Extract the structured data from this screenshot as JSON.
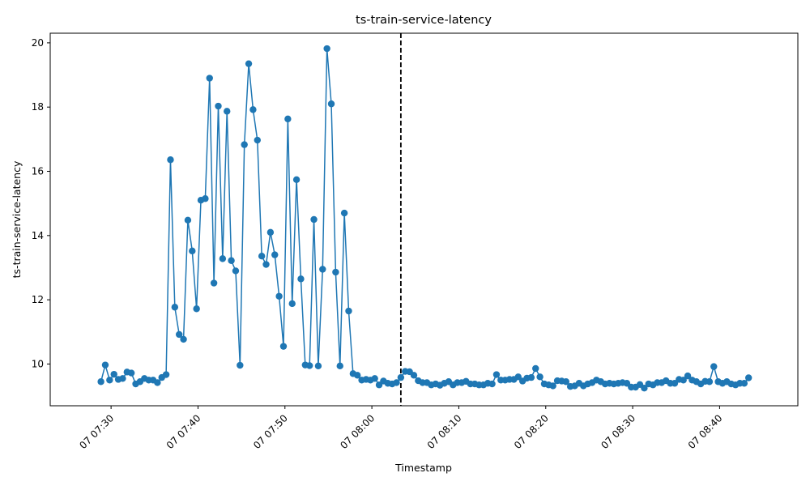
{
  "chart_data": {
    "type": "line",
    "title": "ts-train-service-latency",
    "xlabel": "Timestamp",
    "ylabel": "ts-train-service-latency",
    "xlim": [
      "07 07:23:00",
      "08:49:00"
    ],
    "ylim": [
      8.7,
      20.3
    ],
    "grid": false,
    "legend": "none",
    "x_sampling_minutes": 0.5,
    "x_ticks": [
      "07 07:30",
      "07 07:40",
      "07 07:50",
      "07 08:00",
      "07 08:10",
      "07 08:20",
      "07 08:30",
      "07 08:40"
    ],
    "y_ticks": [
      "10",
      "12",
      "14",
      "16",
      "18",
      "20"
    ],
    "vline": {
      "x": "07 08:03:20",
      "style": "dashed",
      "color": "#000000"
    },
    "series": [
      {
        "color": "#1f77b4",
        "x_start": "07 07:28:50",
        "values": [
          9.45,
          9.97,
          9.5,
          9.68,
          9.52,
          9.55,
          9.75,
          9.72,
          9.38,
          9.45,
          9.55,
          9.5,
          9.5,
          9.42,
          9.58,
          9.67,
          16.36,
          11.77,
          10.92,
          10.77,
          14.48,
          13.52,
          11.72,
          15.1,
          15.15,
          18.9,
          12.52,
          18.03,
          13.28,
          17.87,
          13.22,
          12.9,
          9.96,
          16.83,
          19.35,
          17.92,
          16.97,
          13.36,
          13.1,
          14.1,
          13.4,
          12.11,
          10.55,
          17.63,
          11.88,
          15.74,
          12.65,
          9.97,
          9.95,
          14.5,
          9.94,
          12.95,
          19.82,
          18.1,
          12.86,
          9.94,
          14.7,
          11.65,
          9.7,
          9.65,
          9.5,
          9.52,
          9.5,
          9.55,
          9.35,
          9.47,
          9.4,
          9.38,
          9.42,
          9.58,
          9.77,
          9.76,
          9.65,
          9.48,
          9.42,
          9.42,
          9.35,
          9.38,
          9.34,
          9.4,
          9.45,
          9.35,
          9.42,
          9.42,
          9.46,
          9.38,
          9.38,
          9.35,
          9.35,
          9.4,
          9.38,
          9.67,
          9.5,
          9.5,
          9.52,
          9.52,
          9.6,
          9.47,
          9.56,
          9.58,
          9.86,
          9.6,
          9.38,
          9.35,
          9.32,
          9.48,
          9.47,
          9.45,
          9.3,
          9.32,
          9.4,
          9.32,
          9.38,
          9.42,
          9.5,
          9.45,
          9.38,
          9.4,
          9.38,
          9.4,
          9.42,
          9.4,
          9.28,
          9.28,
          9.36,
          9.25,
          9.38,
          9.35,
          9.42,
          9.42,
          9.48,
          9.4,
          9.4,
          9.52,
          9.5,
          9.63,
          9.5,
          9.45,
          9.38,
          9.46,
          9.45,
          9.92,
          9.45,
          9.4,
          9.45,
          9.38,
          9.35,
          9.4,
          9.4,
          9.57
        ]
      }
    ]
  }
}
